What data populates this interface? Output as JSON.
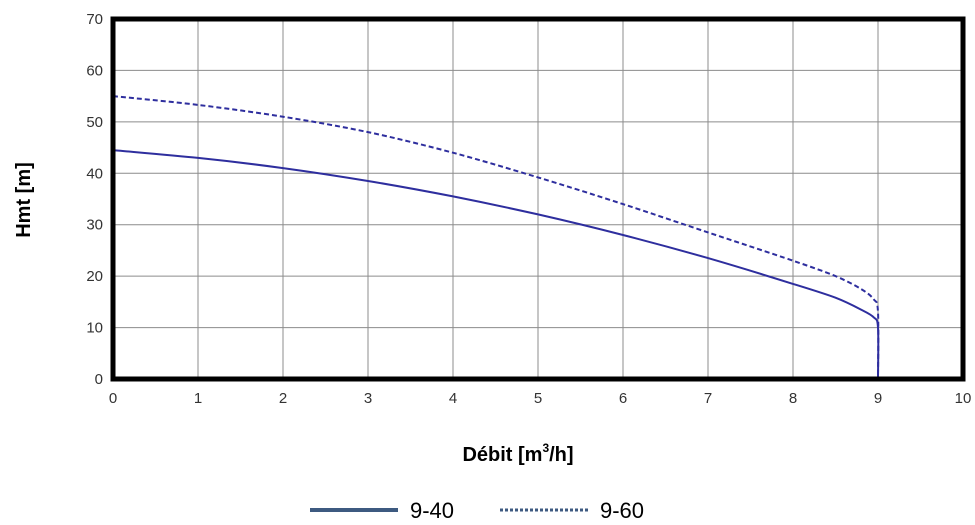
{
  "chart_data": {
    "type": "line",
    "title": "",
    "xlabel": {
      "prefix": "Débit [m",
      "sup": "3",
      "suffix": "/h]"
    },
    "ylabel": "Hmt [m]",
    "xlim": [
      0,
      10
    ],
    "ylim": [
      0,
      70
    ],
    "xticks": [
      "0",
      "1",
      "2",
      "3",
      "4",
      "5",
      "6",
      "7",
      "8",
      "9",
      "10"
    ],
    "yticks": [
      "0",
      "10",
      "20",
      "30",
      "40",
      "50",
      "60",
      "70"
    ],
    "grid": true,
    "legend_position": "bottom-center",
    "series": [
      {
        "name": "9-40",
        "style": "solid",
        "color": "#2e2e9e",
        "legend_color": "#3d5a80",
        "points": [
          [
            0,
            44.5
          ],
          [
            1,
            43
          ],
          [
            2,
            41
          ],
          [
            3,
            38.5
          ],
          [
            4,
            35.5
          ],
          [
            5,
            32
          ],
          [
            6,
            28
          ],
          [
            7,
            23.5
          ],
          [
            8,
            18.5
          ],
          [
            8.5,
            15.8
          ],
          [
            8.8,
            13.5
          ],
          [
            8.95,
            12
          ],
          [
            9,
            10
          ],
          [
            9,
            0
          ]
        ]
      },
      {
        "name": "9-60",
        "style": "dashed",
        "color": "#2e2e9e",
        "legend_color": "#3d5a80",
        "points": [
          [
            0,
            55
          ],
          [
            1,
            53.3
          ],
          [
            2,
            51
          ],
          [
            3,
            48
          ],
          [
            4,
            44
          ],
          [
            5,
            39.2
          ],
          [
            6,
            34
          ],
          [
            7,
            28.5
          ],
          [
            8,
            23
          ],
          [
            8.5,
            20
          ],
          [
            8.8,
            17.5
          ],
          [
            8.95,
            15.5
          ],
          [
            9,
            13
          ],
          [
            9,
            0
          ]
        ]
      }
    ]
  }
}
